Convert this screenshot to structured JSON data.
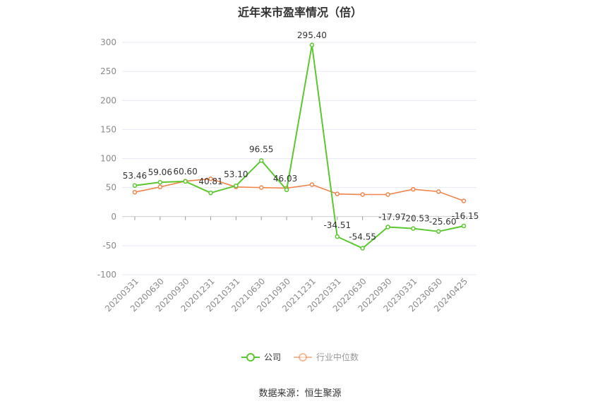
{
  "title": "近年来市盈率情况（倍）",
  "source": "数据来源：恒生聚源",
  "chart_data": {
    "type": "line",
    "categories": [
      "20200331",
      "20200630",
      "20200930",
      "20201231",
      "20210331",
      "20210630",
      "20210930",
      "20211231",
      "20220331",
      "20220630",
      "20220930",
      "20230331",
      "20230630",
      "20240425"
    ],
    "ylim": [
      -100,
      300
    ],
    "yticks": [
      -100,
      -50,
      0,
      50,
      100,
      150,
      200,
      250,
      300
    ],
    "grid": true,
    "legend_position": "bottom",
    "series": [
      {
        "name": "公司",
        "color": "#5cc72f",
        "values": [
          53.46,
          59.06,
          60.6,
          40.81,
          53.1,
          96.55,
          46.03,
          295.4,
          -34.51,
          -54.55,
          -17.97,
          -20.53,
          -25.6,
          -16.15
        ],
        "labels": [
          "53.46",
          "59.06",
          "60.60",
          "40.81",
          "53.10",
          "96.55",
          "46.03",
          "295.40",
          "-34.51",
          "-54.55",
          "-17.97",
          "-20.53",
          "-25.60",
          "-16.15"
        ]
      },
      {
        "name": "行业中位数",
        "color": "#f0844a",
        "values": [
          42,
          51,
          61,
          65,
          51,
          50,
          49,
          55,
          39,
          38,
          38,
          47,
          43,
          27
        ]
      }
    ]
  }
}
